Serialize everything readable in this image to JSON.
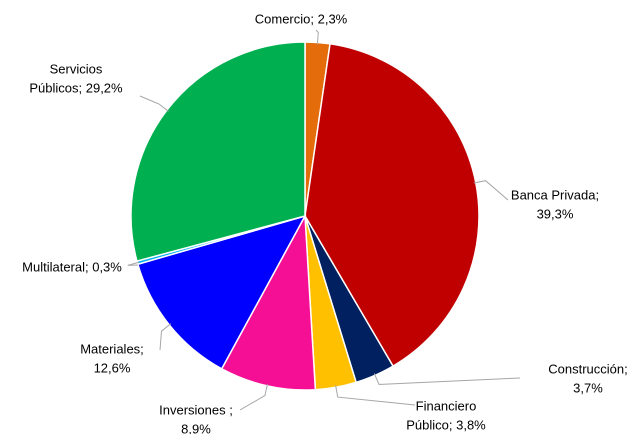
{
  "chart_data": {
    "type": "pie",
    "labels": [
      [
        "Comercio; 2,3%"
      ],
      [
        "Banca Privada;",
        "39,3%"
      ],
      [
        "Construcción;",
        "3,7%"
      ],
      [
        "Financiero",
        "Público; 3,8%"
      ],
      [
        "Inversiones ;",
        "8,9%"
      ],
      [
        "Materiales;",
        "12,6%"
      ],
      [
        "Multilateral; 0,3%"
      ],
      [
        "Servicios",
        "Públicos; 29,2%"
      ]
    ],
    "values": [
      2.3,
      39.3,
      3.7,
      3.8,
      8.9,
      12.6,
      0.3,
      29.2
    ],
    "colors": [
      "#e46c0a",
      "#c00000",
      "#002060",
      "#ffc000",
      "#f50f94",
      "#0000ff",
      "#00b0f0",
      "#00b050"
    ]
  }
}
